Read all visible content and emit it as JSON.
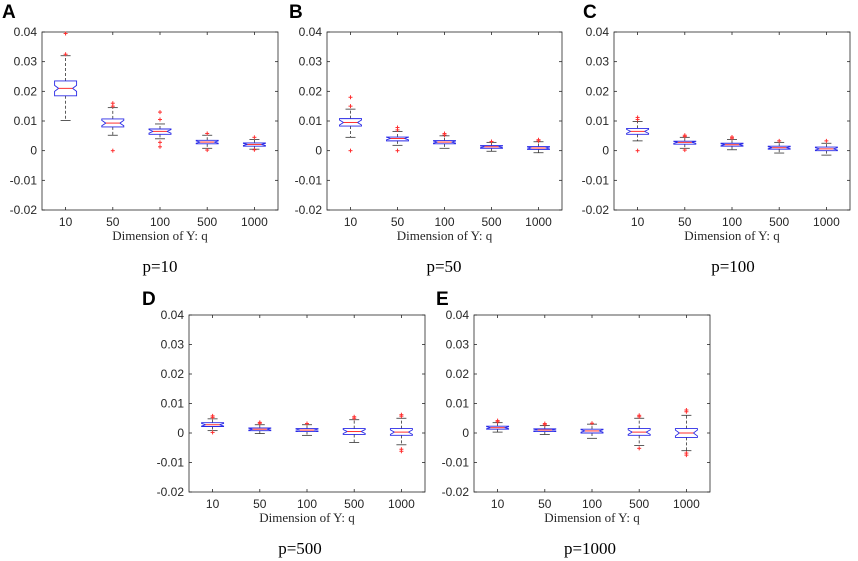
{
  "chart_data": [
    {
      "panel": "A",
      "caption": "p=10",
      "type": "box",
      "categories": [
        "10",
        "50",
        "100",
        "500",
        "1000"
      ],
      "xlabel": "Dimension of Y: q",
      "ylim": [
        -0.02,
        0.04
      ],
      "yticks": [
        "-0.02",
        "-0.01",
        "0",
        "0.01",
        "0.02",
        "0.03",
        "0.04"
      ],
      "boxes": [
        {
          "q1": 0.0185,
          "median": 0.021,
          "q3": 0.0235,
          "whisker_low": 0.0102,
          "whisker_high": 0.032,
          "outliers": [
            0.0325,
            0.0395
          ]
        },
        {
          "q1": 0.008,
          "median": 0.0093,
          "q3": 0.0107,
          "whisker_low": 0.0052,
          "whisker_high": 0.0145,
          "outliers": [
            0.0,
            0.015,
            0.016
          ]
        },
        {
          "q1": 0.0055,
          "median": 0.0065,
          "q3": 0.0073,
          "whisker_low": 0.004,
          "whisker_high": 0.009,
          "outliers": [
            0.0028,
            0.0013,
            0.0105,
            0.013
          ]
        },
        {
          "q1": 0.0023,
          "median": 0.0029,
          "q3": 0.0035,
          "whisker_low": 0.0008,
          "whisker_high": 0.0052,
          "outliers": [
            0.0002,
            0.0058
          ]
        },
        {
          "q1": 0.0015,
          "median": 0.0021,
          "q3": 0.0026,
          "whisker_low": 0.0005,
          "whisker_high": 0.0038,
          "outliers": [
            0.0003,
            0.0045
          ]
        }
      ]
    },
    {
      "panel": "B",
      "caption": "p=50",
      "type": "box",
      "categories": [
        "10",
        "50",
        "100",
        "500",
        "1000"
      ],
      "xlabel": "Dimension of Y: q",
      "ylim": [
        -0.02,
        0.04
      ],
      "yticks": [
        "-0.02",
        "-0.01",
        "0",
        "0.01",
        "0.02",
        "0.03",
        "0.04"
      ],
      "boxes": [
        {
          "q1": 0.0083,
          "median": 0.0095,
          "q3": 0.0108,
          "whisker_low": 0.0045,
          "whisker_high": 0.014,
          "outliers": [
            0.0,
            0.015,
            0.018
          ]
        },
        {
          "q1": 0.0033,
          "median": 0.0041,
          "q3": 0.0046,
          "whisker_low": 0.0018,
          "whisker_high": 0.0065,
          "outliers": [
            0.0,
            0.007,
            0.0078
          ]
        },
        {
          "q1": 0.0023,
          "median": 0.0029,
          "q3": 0.0034,
          "whisker_low": 0.0008,
          "whisker_high": 0.005,
          "outliers": [
            0.0053,
            0.0058
          ]
        },
        {
          "q1": 0.0008,
          "median": 0.0013,
          "q3": 0.0017,
          "whisker_low": -0.0002,
          "whisker_high": 0.0028,
          "outliers": [
            0.0031
          ]
        },
        {
          "q1": 0.0004,
          "median": 0.0009,
          "q3": 0.0014,
          "whisker_low": -0.0007,
          "whisker_high": 0.003,
          "outliers": [
            0.0033,
            0.0037
          ]
        }
      ]
    },
    {
      "panel": "C",
      "caption": "p=100",
      "type": "box",
      "categories": [
        "10",
        "50",
        "100",
        "500",
        "1000"
      ],
      "xlabel": "Dimension of Y: q",
      "ylim": [
        -0.02,
        0.04
      ],
      "yticks": [
        "-0.02",
        "-0.01",
        "0",
        "0.01",
        "0.02",
        "0.03",
        "0.04"
      ],
      "boxes": [
        {
          "q1": 0.0055,
          "median": 0.0065,
          "q3": 0.0075,
          "whisker_low": 0.0033,
          "whisker_high": 0.0098,
          "outliers": [
            0.0,
            0.0105,
            0.0112
          ]
        },
        {
          "q1": 0.0022,
          "median": 0.0028,
          "q3": 0.0032,
          "whisker_low": 0.0008,
          "whisker_high": 0.0045,
          "outliers": [
            0.0002,
            0.0048,
            0.0052
          ]
        },
        {
          "q1": 0.0015,
          "median": 0.002,
          "q3": 0.0025,
          "whisker_low": 0.0003,
          "whisker_high": 0.0038,
          "outliers": [
            0.0042,
            0.0046
          ]
        },
        {
          "q1": 0.0005,
          "median": 0.001,
          "q3": 0.0015,
          "whisker_low": -0.0008,
          "whisker_high": 0.0028,
          "outliers": [
            0.0033
          ]
        },
        {
          "q1": 0.0,
          "median": 0.0006,
          "q3": 0.0012,
          "whisker_low": -0.0015,
          "whisker_high": 0.0025,
          "outliers": [
            0.0033
          ]
        }
      ]
    },
    {
      "panel": "D",
      "caption": "p=500",
      "type": "box",
      "categories": [
        "10",
        "50",
        "100",
        "500",
        "1000"
      ],
      "xlabel": "Dimension of Y: q",
      "ylim": [
        -0.02,
        0.04
      ],
      "yticks": [
        "-0.02",
        "-0.01",
        "0",
        "0.01",
        "0.02",
        "0.03",
        "0.04"
      ],
      "boxes": [
        {
          "q1": 0.0022,
          "median": 0.0028,
          "q3": 0.0035,
          "whisker_low": 0.0008,
          "whisker_high": 0.0048,
          "outliers": [
            0.0002,
            0.0053,
            0.0058
          ]
        },
        {
          "q1": 0.0008,
          "median": 0.0013,
          "q3": 0.0017,
          "whisker_low": -0.0002,
          "whisker_high": 0.0028,
          "outliers": [
            0.0033,
            0.0036
          ]
        },
        {
          "q1": 0.0005,
          "median": 0.001,
          "q3": 0.0015,
          "whisker_low": -0.0008,
          "whisker_high": 0.0028,
          "outliers": [
            0.0032
          ]
        },
        {
          "q1": -0.0005,
          "median": 0.0005,
          "q3": 0.0015,
          "whisker_low": -0.0032,
          "whisker_high": 0.0045,
          "outliers": [
            0.005,
            0.0055
          ]
        },
        {
          "q1": -0.0008,
          "median": 0.0003,
          "q3": 0.0015,
          "whisker_low": -0.004,
          "whisker_high": 0.005,
          "outliers": [
            -0.0055,
            -0.0062,
            0.0057,
            0.0062
          ]
        }
      ]
    },
    {
      "panel": "E",
      "caption": "p=1000",
      "type": "box",
      "categories": [
        "10",
        "50",
        "100",
        "500",
        "1000"
      ],
      "xlabel": "Dimension of Y: q",
      "ylim": [
        -0.02,
        0.04
      ],
      "yticks": [
        "-0.02",
        "-0.01",
        "0",
        "0.01",
        "0.02",
        "0.03",
        "0.04"
      ],
      "boxes": [
        {
          "q1": 0.0013,
          "median": 0.0018,
          "q3": 0.0023,
          "whisker_low": 0.0003,
          "whisker_high": 0.0035,
          "outliers": [
            0.0038,
            0.0042
          ]
        },
        {
          "q1": 0.0005,
          "median": 0.001,
          "q3": 0.0014,
          "whisker_low": -0.0005,
          "whisker_high": 0.0025,
          "outliers": [
            0.0028,
            0.0032
          ]
        },
        {
          "q1": 0.0,
          "median": 0.0007,
          "q3": 0.0013,
          "whisker_low": -0.0018,
          "whisker_high": 0.003,
          "outliers": [
            0.0033
          ]
        },
        {
          "q1": -0.0008,
          "median": 0.0003,
          "q3": 0.0015,
          "whisker_low": -0.0042,
          "whisker_high": 0.005,
          "outliers": [
            -0.0052,
            0.0055,
            0.006
          ]
        },
        {
          "q1": -0.0015,
          "median": 0.0,
          "q3": 0.0015,
          "whisker_low": -0.006,
          "whisker_high": 0.006,
          "outliers": [
            -0.0068,
            -0.0075,
            0.0072,
            0.0078
          ]
        }
      ]
    }
  ],
  "colors": {
    "box": "#2a2ae6",
    "median": "#ff3030",
    "whisker": "#333333",
    "outlier": "#ff3030",
    "axis": "#262626"
  }
}
